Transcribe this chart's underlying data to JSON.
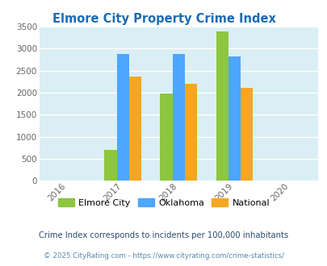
{
  "title": "Elmore City Property Crime Index",
  "title_color": "#1a6bb5",
  "years": [
    "2016",
    "2017",
    "2018",
    "2019",
    "2020"
  ],
  "bar_years": [
    2017,
    2018,
    2019
  ],
  "elmore_city": [
    700,
    1975,
    3390
  ],
  "oklahoma": [
    2880,
    2880,
    2825
  ],
  "national": [
    2370,
    2200,
    2105
  ],
  "elmore_color": "#8dc63f",
  "oklahoma_color": "#4da6ff",
  "national_color": "#f5a623",
  "ylim": [
    0,
    3500
  ],
  "yticks": [
    0,
    500,
    1000,
    1500,
    2000,
    2500,
    3000,
    3500
  ],
  "bg_color": "#daeef5",
  "legend_labels": [
    "Elmore City",
    "Oklahoma",
    "National"
  ],
  "footnote1": "Crime Index corresponds to incidents per 100,000 inhabitants",
  "footnote2": "© 2025 CityRating.com - https://www.cityrating.com/crime-statistics/",
  "footnote1_color": "#2c4a6e",
  "footnote2_color": "#5588aa"
}
